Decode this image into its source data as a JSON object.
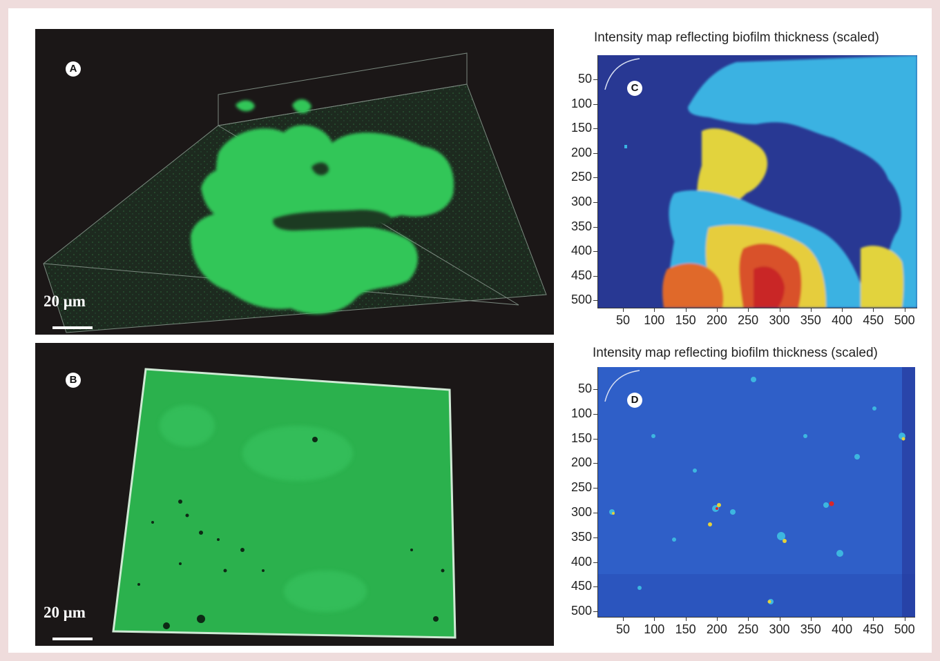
{
  "figure": {
    "panel_a": {
      "label": "A",
      "scale_label": "20 μm"
    },
    "panel_b": {
      "label": "B",
      "scale_label": "20 μm"
    },
    "panel_c": {
      "label": "C",
      "title": "Intensity map reflecting biofilm thickness (scaled)",
      "yticks": [
        "50",
        "100",
        "150",
        "200",
        "250",
        "300",
        "350",
        "400",
        "450",
        "500"
      ],
      "xticks": [
        "50",
        "100",
        "150",
        "200",
        "250",
        "300",
        "350",
        "400",
        "450",
        "500"
      ]
    },
    "panel_d": {
      "label": "D",
      "title": "Intensity map reflecting biofilm thickness (scaled)",
      "yticks": [
        "50",
        "100",
        "150",
        "200",
        "250",
        "300",
        "350",
        "400",
        "450",
        "500"
      ],
      "xticks": [
        "50",
        "100",
        "150",
        "200",
        "250",
        "300",
        "350",
        "400",
        "450",
        "500"
      ]
    }
  },
  "colors": {
    "biofilm_green": "#33c659",
    "dark_background": "#1b1717",
    "map_blue_dark": "#283893",
    "map_cyan": "#36b6e6",
    "map_yellow": "#e8d63c",
    "map_red": "#d8262a"
  }
}
